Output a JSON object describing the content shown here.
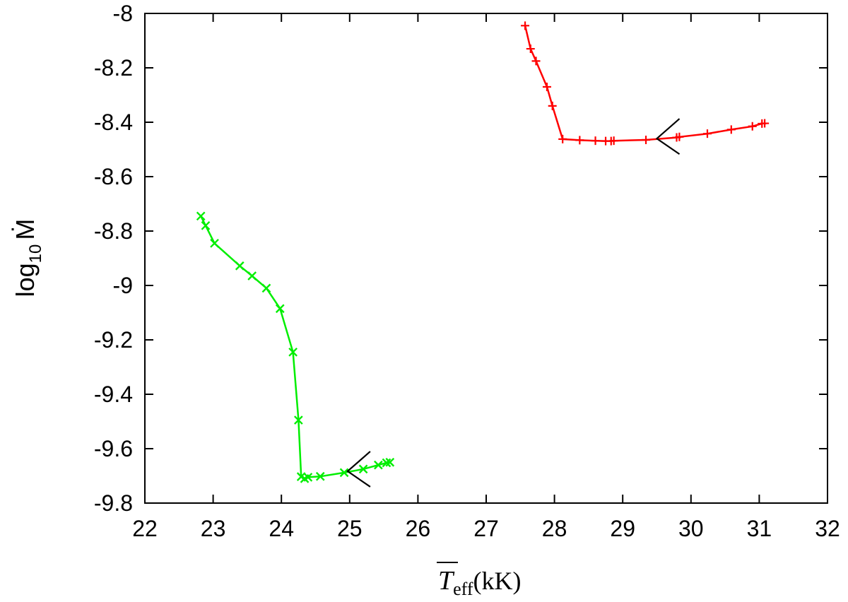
{
  "chart_data": {
    "type": "line",
    "xlabel": {
      "symbol": "T",
      "subscript": "eff",
      "unit": "(kK)"
    },
    "ylabel": {
      "base": "log",
      "subscript": "10",
      "symbol": "Ṁ"
    },
    "xlim": [
      22,
      32
    ],
    "ylim": [
      -9.8,
      -8
    ],
    "xticks": [
      22,
      23,
      24,
      25,
      26,
      27,
      28,
      29,
      30,
      31,
      32
    ],
    "xtick_labels": [
      "22",
      "23",
      "24",
      "25",
      "26",
      "27",
      "28",
      "29",
      "30",
      "31",
      "32"
    ],
    "yticks": [
      -8,
      -8.2,
      -8.4,
      -8.6,
      -8.8,
      -9,
      -9.2,
      -9.4,
      -9.6,
      -9.8
    ],
    "ytick_labels": [
      "-8",
      "-8.2",
      "-8.4",
      "-8.6",
      "-8.8",
      "-9",
      "-9.2",
      "-9.4",
      "-9.6",
      "-9.8"
    ],
    "grid": false,
    "series": [
      {
        "color": "#ff0000",
        "marker": "plus",
        "x": [
          27.57,
          27.65,
          27.73,
          27.89,
          27.97,
          28.12,
          28.37,
          28.6,
          28.75,
          28.83,
          28.87,
          29.34,
          29.79,
          29.83,
          30.24,
          30.59,
          30.9,
          31.04,
          31.08
        ],
        "y": [
          -8.045,
          -8.13,
          -8.175,
          -8.27,
          -8.34,
          -8.462,
          -8.466,
          -8.468,
          -8.469,
          -8.469,
          -8.468,
          -8.465,
          -8.456,
          -8.454,
          -8.442,
          -8.427,
          -8.415,
          -8.405,
          -8.404
        ],
        "arrow": {
          "x": 29.5,
          "y": -8.46,
          "direction": "left"
        }
      },
      {
        "color": "#00ee00",
        "marker": "cross",
        "x": [
          22.82,
          22.89,
          23.02,
          23.39,
          23.57,
          23.78,
          23.98,
          24.17,
          24.25,
          24.29,
          24.34,
          24.39,
          24.57,
          24.92,
          25.2,
          25.42,
          25.54,
          25.59
        ],
        "y": [
          -8.745,
          -8.78,
          -8.845,
          -8.928,
          -8.965,
          -9.01,
          -9.085,
          -9.245,
          -9.495,
          -9.703,
          -9.71,
          -9.705,
          -9.702,
          -9.688,
          -9.675,
          -9.66,
          -9.652,
          -9.65
        ],
        "arrow": {
          "x": 24.97,
          "y": -9.683,
          "direction": "left"
        }
      }
    ]
  }
}
